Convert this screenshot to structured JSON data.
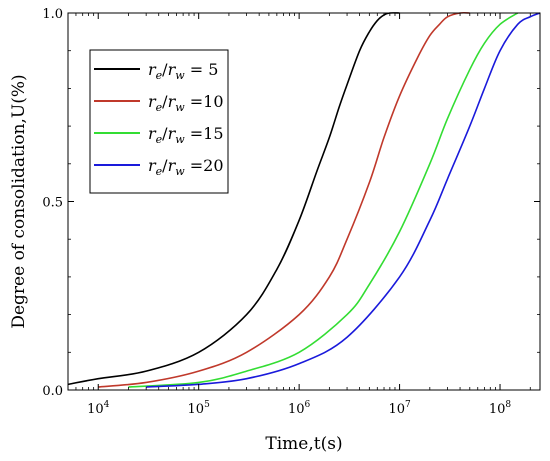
{
  "chart_data": {
    "type": "line",
    "xlabel": "Time,t(s)",
    "ylabel": "Degree of consolidation,U(%)",
    "x_scale": "log",
    "xlim": [
      5000,
      250000000
    ],
    "ylim": [
      0,
      1.0
    ],
    "x_ticks": [
      {
        "value": 10000,
        "base": "10",
        "exp": "4"
      },
      {
        "value": 100000,
        "base": "10",
        "exp": "5"
      },
      {
        "value": 1000000,
        "base": "10",
        "exp": "6"
      },
      {
        "value": 10000000,
        "base": "10",
        "exp": "7"
      },
      {
        "value": 100000000,
        "base": "10",
        "exp": "8"
      }
    ],
    "y_ticks": [
      {
        "value": 0.0,
        "label": "0.0"
      },
      {
        "value": 0.5,
        "label": "0.5"
      },
      {
        "value": 1.0,
        "label": "1.0"
      }
    ],
    "legend_position": "upper-left",
    "grid": false,
    "series": [
      {
        "name": "re/rw = 5",
        "label_main": "r",
        "sub1": "e",
        "slash": "/",
        "label_main2": "r",
        "sub2": "w",
        "suffix": " = 5",
        "color": "#000000",
        "x": [
          5000,
          10000,
          30000,
          100000,
          300000,
          600000,
          1000000,
          1500000,
          2000000,
          2500000,
          3000000,
          4000000,
          5000000,
          6000000,
          7000000,
          8000000,
          10000000
        ],
        "y": [
          0.015,
          0.03,
          0.05,
          0.1,
          0.2,
          0.32,
          0.45,
          0.58,
          0.67,
          0.75,
          0.81,
          0.9,
          0.95,
          0.98,
          0.995,
          1.0,
          1.0
        ]
      },
      {
        "name": "re/rw =10",
        "label_main": "r",
        "sub1": "e",
        "slash": "/",
        "label_main2": "r",
        "sub2": "w",
        "suffix": " =10",
        "color": "#c0392b",
        "x": [
          10000,
          30000,
          100000,
          300000,
          1000000,
          2000000,
          3000000,
          5000000,
          7000000,
          10000000,
          15000000,
          20000000,
          25000000,
          30000000,
          40000000,
          50000000
        ],
        "y": [
          0.008,
          0.02,
          0.05,
          0.1,
          0.2,
          0.3,
          0.4,
          0.55,
          0.67,
          0.78,
          0.88,
          0.94,
          0.97,
          0.99,
          1.0,
          1.0
        ]
      },
      {
        "name": "re/rw =15",
        "label_main": "r",
        "sub1": "e",
        "slash": "/",
        "label_main2": "r",
        "sub2": "w",
        "suffix": " =15",
        "color": "#33dd33",
        "x": [
          20000,
          100000,
          300000,
          1000000,
          3000000,
          5000000,
          10000000,
          20000000,
          30000000,
          50000000,
          70000000,
          100000000,
          150000000
        ],
        "y": [
          0.008,
          0.02,
          0.05,
          0.1,
          0.2,
          0.28,
          0.42,
          0.6,
          0.72,
          0.85,
          0.92,
          0.97,
          1.0
        ]
      },
      {
        "name": "re/rw =20",
        "label_main": "r",
        "sub1": "e",
        "slash": "/",
        "label_main2": "r",
        "sub2": "w",
        "suffix": " =20",
        "color": "#1a1adb",
        "x": [
          30000,
          100000,
          300000,
          1000000,
          3000000,
          10000000,
          20000000,
          30000000,
          50000000,
          70000000,
          100000000,
          150000000,
          200000000,
          250000000
        ],
        "y": [
          0.008,
          0.015,
          0.03,
          0.07,
          0.14,
          0.3,
          0.45,
          0.56,
          0.7,
          0.8,
          0.9,
          0.97,
          0.99,
          1.0
        ]
      }
    ]
  }
}
